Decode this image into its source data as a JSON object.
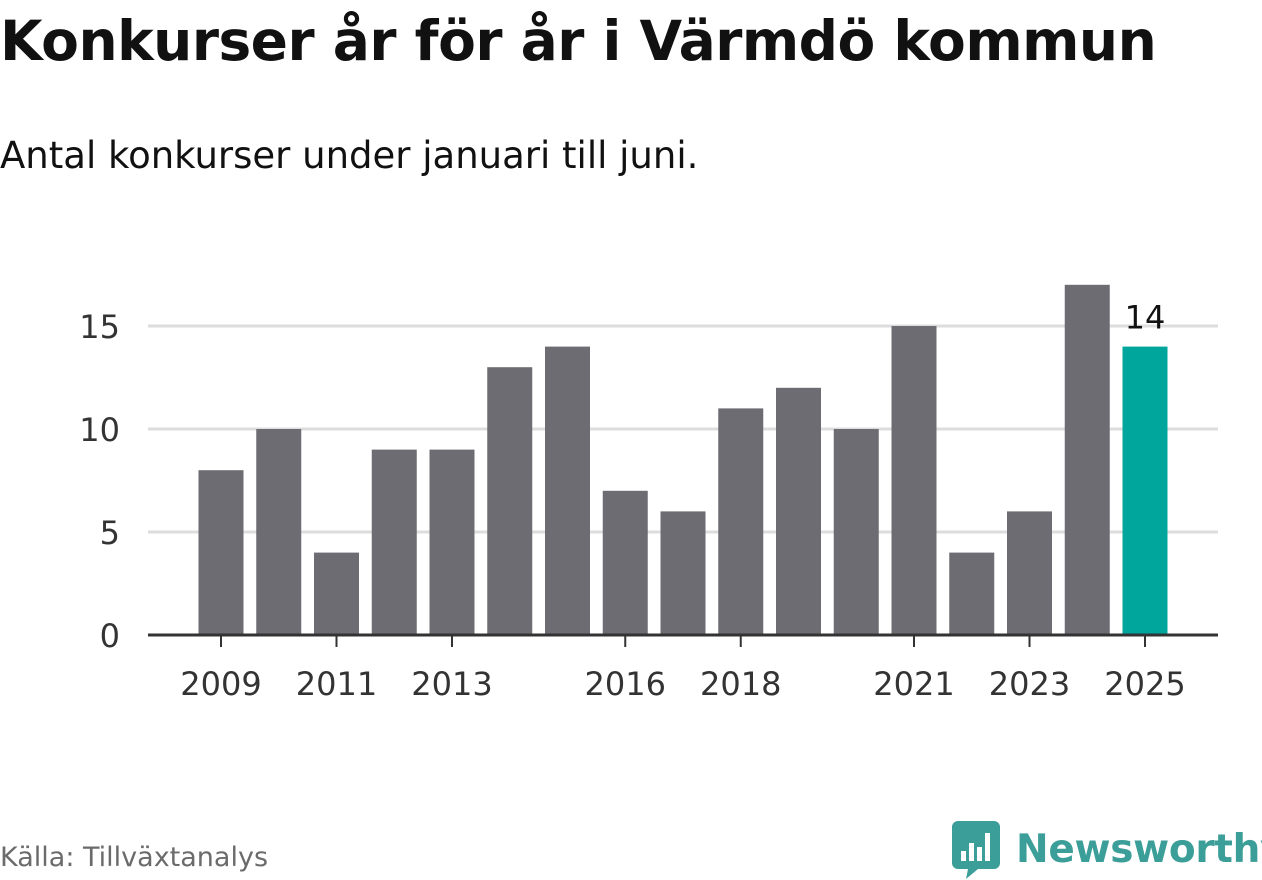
{
  "header": {
    "title": "Konkurser år för år i Värmdö kommun",
    "subtitle": "Antal konkurser under januari till juni."
  },
  "footer": {
    "source": "Källa: Tillväxtanalys",
    "brand": "Newsworthy"
  },
  "colors": {
    "bar": "#6d6c72",
    "highlight": "#00a69c",
    "grid": "#dddddd",
    "axis": "#333333",
    "brand": "#3c9e98"
  },
  "icons": {
    "logo": "newsworthy-bar-chart-logo-icon"
  },
  "chart_data": {
    "type": "bar",
    "categories": [
      "2009",
      "2010",
      "2011",
      "2012",
      "2013",
      "2014",
      "2015",
      "2016",
      "2017",
      "2018",
      "2019",
      "2020",
      "2021",
      "2022",
      "2023",
      "2024",
      "2025"
    ],
    "values": [
      8,
      10,
      4,
      9,
      9,
      13,
      14,
      7,
      6,
      11,
      12,
      10,
      15,
      4,
      6,
      17,
      14
    ],
    "highlight_category": "2025",
    "x_tick_labels": [
      "2009",
      "2011",
      "2013",
      "2016",
      "2018",
      "2021",
      "2023",
      "2025"
    ],
    "y_ticks": [
      0,
      5,
      10,
      15
    ],
    "ylim": [
      0,
      17
    ],
    "grid": true,
    "data_labels": [
      {
        "category": "2025",
        "text": "14"
      }
    ],
    "title": "Konkurser år för år i Värmdö kommun",
    "subtitle": "Antal konkurser under januari till juni.",
    "xlabel": "",
    "ylabel": ""
  }
}
